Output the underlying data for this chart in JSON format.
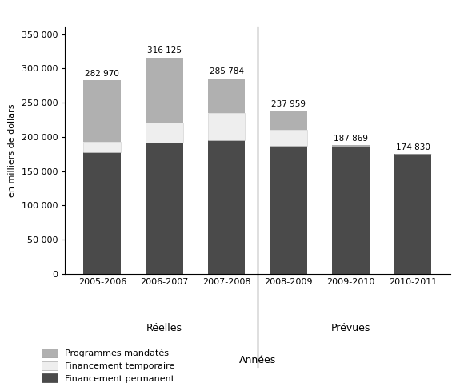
{
  "years": [
    "2005-2006",
    "2006-2007",
    "2007-2008",
    "2008-2009",
    "2009-2010",
    "2010-2011"
  ],
  "programmes_mandates": [
    90665,
    95200,
    50307,
    27151,
    2663,
    0
  ],
  "financement_temporaire": [
    15009,
    28920,
    40103,
    23836,
    0,
    0
  ],
  "financement_permanent": [
    177296,
    192005,
    195374,
    186972,
    185206,
    174830
  ],
  "totals": [
    "282 970",
    "316 125",
    "285 784",
    "237 959",
    "187 869",
    "174 830"
  ],
  "color_permanent": "#4a4a4a",
  "color_temporaire": "#eeeeee",
  "color_mandates": "#b0b0b0",
  "ylabel": "en milliers de dollars",
  "xlabel": "Années",
  "label_reelles": "Réelles",
  "label_prevues": "Prévues",
  "legend_mandates": "Programmes mandatés",
  "legend_temporaire": "Financement temporaire",
  "legend_permanent": "Financement permanent",
  "ylim": [
    0,
    360000
  ],
  "yticks": [
    0,
    50000,
    100000,
    150000,
    200000,
    250000,
    300000,
    350000
  ],
  "ytick_labels": [
    "0",
    "50 000",
    "100 000",
    "150 000",
    "200 000",
    "250 000",
    "300 000",
    "350 000"
  ],
  "bar_width": 0.6
}
